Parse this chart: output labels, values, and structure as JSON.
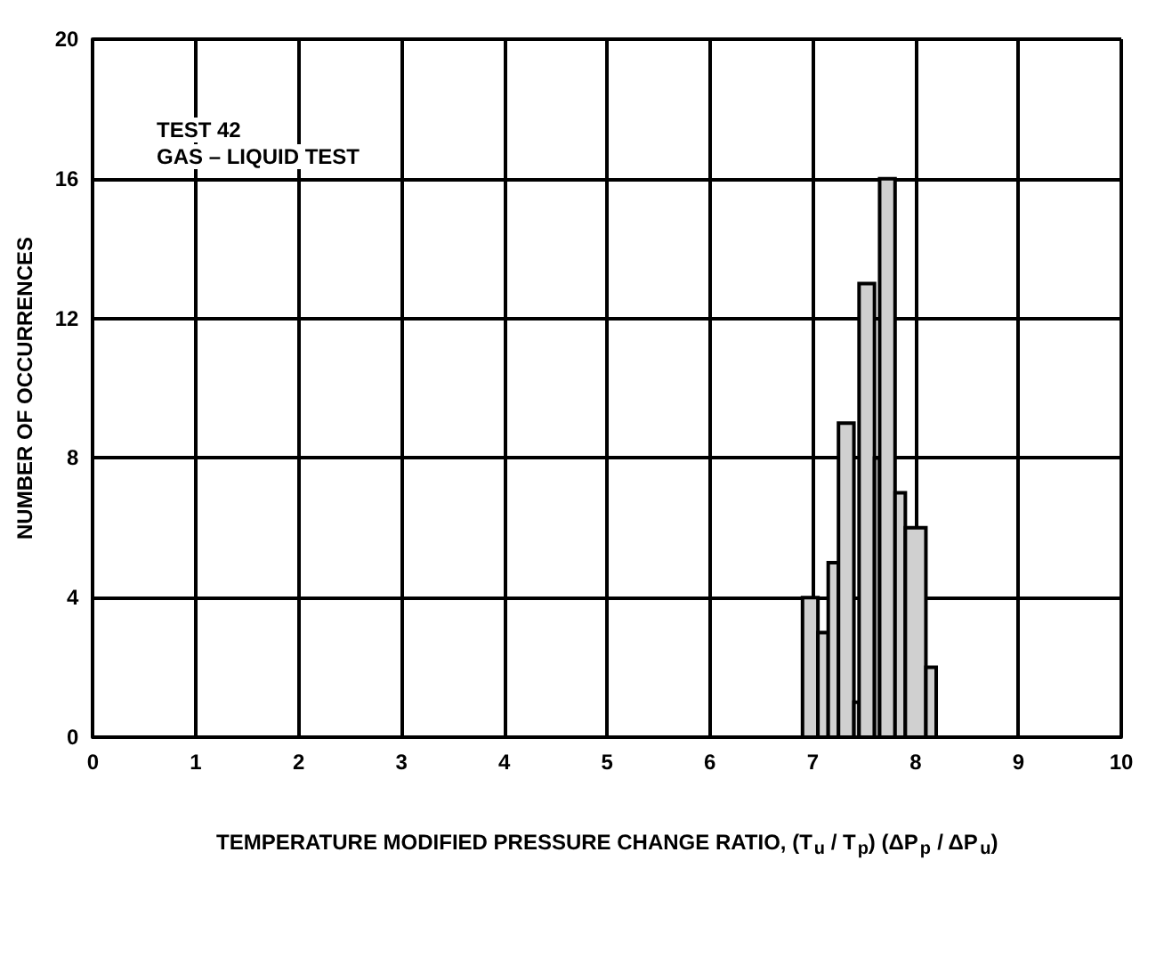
{
  "chart_data": {
    "type": "histogram",
    "annotations": [
      "TEST 42",
      "GAS – LIQUID TEST"
    ],
    "xlabel": "TEMPERATURE MODIFIED PRESSURE CHANGE RATIO, (T$_{u}$ / T$_{p}$) (ΔP$_{p}$ / ΔP$_{u}$)",
    "ylabel": "NUMBER OF OCCURRENCES",
    "bins": [
      6.9,
      7.05,
      7.15,
      7.25,
      7.4,
      7.45,
      7.6,
      7.65,
      7.8,
      7.9,
      8.1,
      8.2
    ],
    "values": [
      4,
      3,
      5,
      9,
      1,
      13,
      8,
      16,
      7,
      6,
      2
    ],
    "color": "#d0d0d0",
    "xlim": [
      0,
      10
    ],
    "xticks": [
      0,
      1,
      2,
      3,
      4,
      5,
      6,
      7,
      8,
      9,
      10
    ],
    "ylim": [
      0,
      20
    ],
    "yticks": [
      0,
      4,
      8,
      12,
      16,
      20
    ],
    "grid": true
  }
}
